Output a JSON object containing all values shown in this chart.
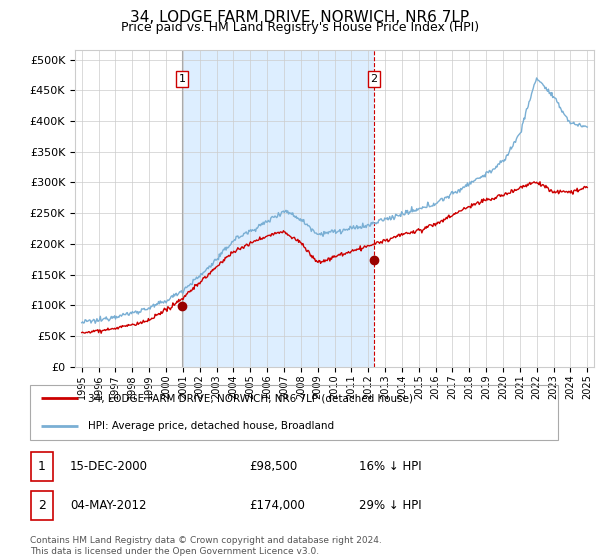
{
  "title": "34, LODGE FARM DRIVE, NORWICH, NR6 7LP",
  "subtitle": "Price paid vs. HM Land Registry's House Price Index (HPI)",
  "ylabel_ticks": [
    "£0",
    "£50K",
    "£100K",
    "£150K",
    "£200K",
    "£250K",
    "£300K",
    "£350K",
    "£400K",
    "£450K",
    "£500K"
  ],
  "ytick_values": [
    0,
    50000,
    100000,
    150000,
    200000,
    250000,
    300000,
    350000,
    400000,
    450000,
    500000
  ],
  "ylim": [
    0,
    515000
  ],
  "legend_line1": "34, LODGE FARM DRIVE, NORWICH, NR6 7LP (detached house)",
  "legend_line2": "HPI: Average price, detached house, Broadland",
  "sale1_date": "15-DEC-2000",
  "sale1_price": "£98,500",
  "sale1_hpi": "16% ↓ HPI",
  "sale2_date": "04-MAY-2012",
  "sale2_price": "£174,000",
  "sale2_hpi": "29% ↓ HPI",
  "footer": "Contains HM Land Registry data © Crown copyright and database right 2024.\nThis data is licensed under the Open Government Licence v3.0.",
  "red_color": "#cc0000",
  "blue_color": "#7aafd4",
  "shade_color": "#ddeeff",
  "vline1_color": "#aaaaaa",
  "vline2_color": "#cc0000",
  "marker_color": "#990000",
  "sale1_x": 2000.96,
  "sale2_x": 2012.34,
  "sale1_y": 98500,
  "sale2_y": 174000,
  "xlim_left": 1994.6,
  "xlim_right": 2025.4
}
